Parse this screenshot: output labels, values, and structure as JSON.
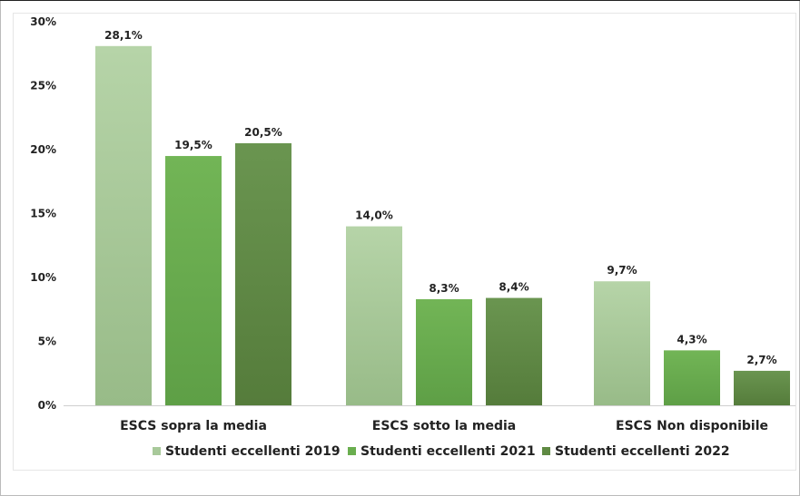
{
  "chart_data": {
    "type": "bar",
    "title": "",
    "xlabel": "",
    "ylabel": "",
    "categories": [
      "ESCS sopra la media",
      "ESCS sotto la media",
      "ESCS Non disponibile"
    ],
    "series": [
      {
        "name": "Studenti eccellenti 2019",
        "values": [
          28.1,
          14.0,
          9.7
        ],
        "labels": [
          "28,1%",
          "14,0%",
          "9,7%"
        ],
        "color": "#a8c99a"
      },
      {
        "name": "Studenti eccellenti 2021",
        "values": [
          19.5,
          8.3,
          4.3
        ],
        "labels": [
          "19,5%",
          "8,3%",
          "4,3%"
        ],
        "color": "#6aae4f"
      },
      {
        "name": "Studenti eccellenti 2022",
        "values": [
          20.5,
          8.4,
          2.7
        ],
        "labels": [
          "20,5%",
          "8,4%",
          "2,7%"
        ],
        "color": "#5f8a43"
      }
    ],
    "ylim": [
      0,
      30
    ],
    "yticks": [
      0,
      5,
      10,
      15,
      20,
      25,
      30
    ],
    "ytick_labels": [
      "0%",
      "5%",
      "10%",
      "15%",
      "20%",
      "25%",
      "30%"
    ],
    "grid": false,
    "legend": "bottom"
  }
}
